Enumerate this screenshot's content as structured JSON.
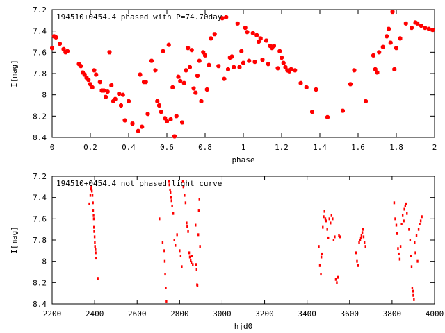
{
  "chart_data": [
    {
      "type": "scatter",
      "title": "194510+0454.4 phased with P=74.70day",
      "xlabel": "phase",
      "ylabel": "I[mag]",
      "xlim": [
        0,
        2
      ],
      "ylim": [
        8.4,
        7.2
      ],
      "y_inverted": true,
      "xticks": [
        "0",
        "0.2",
        "0.4",
        "0.6",
        "0.8",
        "1",
        "1.2",
        "1.4",
        "1.6",
        "1.8",
        "2"
      ],
      "yticks": [
        "7.2",
        "7.4",
        "7.6",
        "7.8",
        "8",
        "8.2",
        "8.4"
      ],
      "grid": false,
      "color": "#ff0000",
      "marker": "filled-square",
      "points": [
        [
          0.0,
          7.56
        ],
        [
          0.01,
          7.45
        ],
        [
          0.02,
          7.46
        ],
        [
          0.04,
          7.52
        ],
        [
          0.06,
          7.57
        ],
        [
          0.07,
          7.6
        ],
        [
          0.08,
          7.59
        ],
        [
          0.14,
          7.71
        ],
        [
          0.15,
          7.73
        ],
        [
          0.16,
          7.79
        ],
        [
          0.17,
          7.81
        ],
        [
          0.18,
          7.84
        ],
        [
          0.19,
          7.86
        ],
        [
          0.2,
          7.9
        ],
        [
          0.21,
          7.93
        ],
        [
          0.22,
          7.77
        ],
        [
          0.23,
          7.81
        ],
        [
          0.25,
          7.88
        ],
        [
          0.26,
          7.96
        ],
        [
          0.27,
          7.96
        ],
        [
          0.28,
          8.02
        ],
        [
          0.29,
          7.97
        ],
        [
          0.3,
          7.6
        ],
        [
          0.31,
          7.91
        ],
        [
          0.32,
          8.06
        ],
        [
          0.33,
          8.04
        ],
        [
          0.35,
          7.99
        ],
        [
          0.36,
          8.1
        ],
        [
          0.37,
          8.0
        ],
        [
          0.38,
          8.24
        ],
        [
          0.4,
          8.06
        ],
        [
          0.42,
          8.27
        ],
        [
          0.45,
          8.34
        ],
        [
          0.46,
          7.81
        ],
        [
          0.47,
          8.3
        ],
        [
          0.48,
          7.88
        ],
        [
          0.49,
          7.88
        ],
        [
          0.5,
          8.18
        ],
        [
          0.52,
          7.68
        ],
        [
          0.54,
          7.77
        ],
        [
          0.55,
          8.06
        ],
        [
          0.56,
          8.1
        ],
        [
          0.57,
          8.16
        ],
        [
          0.58,
          7.59
        ],
        [
          0.59,
          8.22
        ],
        [
          0.6,
          8.25
        ],
        [
          0.61,
          7.53
        ],
        [
          0.62,
          8.23
        ],
        [
          0.63,
          7.93
        ],
        [
          0.64,
          8.39
        ],
        [
          0.65,
          8.2
        ],
        [
          0.66,
          7.83
        ],
        [
          0.67,
          7.87
        ],
        [
          0.68,
          8.26
        ],
        [
          0.69,
          7.89
        ],
        [
          0.7,
          7.77
        ],
        [
          0.71,
          7.56
        ],
        [
          0.72,
          7.74
        ],
        [
          0.73,
          7.58
        ],
        [
          0.74,
          7.94
        ],
        [
          0.75,
          7.98
        ],
        [
          0.76,
          7.82
        ],
        [
          0.77,
          7.68
        ],
        [
          0.78,
          8.06
        ],
        [
          0.79,
          7.6
        ],
        [
          0.8,
          7.63
        ],
        [
          0.81,
          7.95
        ],
        [
          0.82,
          7.72
        ],
        [
          0.83,
          7.47
        ],
        [
          0.85,
          7.43
        ],
        [
          0.87,
          7.73
        ],
        [
          0.89,
          7.28
        ],
        [
          0.9,
          7.85
        ],
        [
          0.91,
          7.27
        ],
        [
          0.92,
          7.76
        ],
        [
          0.93,
          7.65
        ],
        [
          0.94,
          7.64
        ],
        [
          0.95,
          7.74
        ],
        [
          0.97,
          7.33
        ],
        [
          0.98,
          7.74
        ],
        [
          0.99,
          7.59
        ],
        [
          1.0,
          7.7
        ],
        [
          1.01,
          7.37
        ],
        [
          1.02,
          7.41
        ],
        [
          1.03,
          7.68
        ],
        [
          1.05,
          7.42
        ],
        [
          1.06,
          7.69
        ],
        [
          1.07,
          7.44
        ],
        [
          1.08,
          7.5
        ],
        [
          1.09,
          7.47
        ],
        [
          1.1,
          7.67
        ],
        [
          1.12,
          7.49
        ],
        [
          1.13,
          7.71
        ],
        [
          1.14,
          7.54
        ],
        [
          1.15,
          7.56
        ],
        [
          1.16,
          7.54
        ],
        [
          1.18,
          7.75
        ],
        [
          1.19,
          7.59
        ],
        [
          1.2,
          7.65
        ],
        [
          1.21,
          7.7
        ],
        [
          1.22,
          7.74
        ],
        [
          1.23,
          7.77
        ],
        [
          1.24,
          7.78
        ],
        [
          1.25,
          7.76
        ],
        [
          1.27,
          7.77
        ],
        [
          1.3,
          7.89
        ],
        [
          1.33,
          7.93
        ],
        [
          1.36,
          8.16
        ],
        [
          1.38,
          7.95
        ],
        [
          1.44,
          8.21
        ],
        [
          1.52,
          8.15
        ],
        [
          1.56,
          7.9
        ],
        [
          1.58,
          7.77
        ],
        [
          1.64,
          8.06
        ],
        [
          1.68,
          7.63
        ],
        [
          1.69,
          7.76
        ],
        [
          1.7,
          7.79
        ],
        [
          1.71,
          7.6
        ],
        [
          1.73,
          7.55
        ],
        [
          1.75,
          7.45
        ],
        [
          1.76,
          7.38
        ],
        [
          1.77,
          7.51
        ],
        [
          1.78,
          7.22
        ],
        [
          1.79,
          7.76
        ],
        [
          1.8,
          7.56
        ],
        [
          1.82,
          7.47
        ],
        [
          1.85,
          7.33
        ],
        [
          1.88,
          7.37
        ],
        [
          1.9,
          7.32
        ],
        [
          1.91,
          7.33
        ],
        [
          1.93,
          7.35
        ],
        [
          1.95,
          7.37
        ],
        [
          1.97,
          7.38
        ],
        [
          1.99,
          7.39
        ]
      ]
    },
    {
      "type": "scatter",
      "title": "194510+0454.4 not phased light curve",
      "xlabel": "hjd0",
      "ylabel": "I[mag]",
      "xlim": [
        2200,
        4000
      ],
      "ylim": [
        8.4,
        7.2
      ],
      "y_inverted": true,
      "xticks": [
        "2200",
        "2400",
        "2600",
        "2800",
        "3000",
        "3200",
        "3400",
        "3600",
        "3800",
        "4000"
      ],
      "yticks": [
        "7.2",
        "7.4",
        "7.6",
        "7.8",
        "8",
        "8.2",
        "8.4"
      ],
      "grid": false,
      "color": "#ff0000",
      "marker": "small-dot",
      "points": [
        [
          2375,
          7.46
        ],
        [
          2380,
          7.38
        ],
        [
          2383,
          7.32
        ],
        [
          2385,
          7.3
        ],
        [
          2387,
          7.34
        ],
        [
          2390,
          7.38
        ],
        [
          2392,
          7.45
        ],
        [
          2393,
          7.52
        ],
        [
          2395,
          7.57
        ],
        [
          2396,
          7.6
        ],
        [
          2397,
          7.68
        ],
        [
          2398,
          7.72
        ],
        [
          2400,
          7.77
        ],
        [
          2401,
          7.82
        ],
        [
          2402,
          7.86
        ],
        [
          2404,
          7.89
        ],
        [
          2405,
          7.92
        ],
        [
          2407,
          7.97
        ],
        [
          2415,
          8.16
        ],
        [
          2705,
          7.6
        ],
        [
          2720,
          7.82
        ],
        [
          2728,
          7.9
        ],
        [
          2730,
          8.0
        ],
        [
          2732,
          8.12
        ],
        [
          2735,
          8.25
        ],
        [
          2738,
          8.38
        ],
        [
          2750,
          7.25
        ],
        [
          2752,
          7.28
        ],
        [
          2755,
          7.33
        ],
        [
          2757,
          7.35
        ],
        [
          2760,
          7.4
        ],
        [
          2762,
          7.43
        ],
        [
          2765,
          7.48
        ],
        [
          2770,
          7.55
        ],
        [
          2775,
          7.8
        ],
        [
          2780,
          7.85
        ],
        [
          2788,
          7.75
        ],
        [
          2800,
          7.9
        ],
        [
          2805,
          7.95
        ],
        [
          2810,
          8.05
        ],
        [
          2815,
          7.25
        ],
        [
          2818,
          7.3
        ],
        [
          2823,
          7.38
        ],
        [
          2828,
          7.45
        ],
        [
          2833,
          7.64
        ],
        [
          2836,
          7.67
        ],
        [
          2840,
          7.72
        ],
        [
          2845,
          7.92
        ],
        [
          2848,
          7.96
        ],
        [
          2852,
          7.99
        ],
        [
          2855,
          8.01
        ],
        [
          2858,
          7.95
        ],
        [
          2862,
          8.03
        ],
        [
          2875,
          7.66
        ],
        [
          2878,
          8.03
        ],
        [
          2880,
          8.08
        ],
        [
          2882,
          8.22
        ],
        [
          2884,
          8.23
        ],
        [
          2888,
          7.75
        ],
        [
          2890,
          7.52
        ],
        [
          2893,
          7.42
        ],
        [
          2896,
          7.86
        ],
        [
          3455,
          7.86
        ],
        [
          3460,
          8.04
        ],
        [
          3465,
          8.12
        ],
        [
          3467,
          7.96
        ],
        [
          3470,
          7.93
        ],
        [
          3474,
          7.68
        ],
        [
          3478,
          7.58
        ],
        [
          3482,
          7.53
        ],
        [
          3486,
          7.6
        ],
        [
          3490,
          7.62
        ],
        [
          3495,
          7.7
        ],
        [
          3500,
          7.78
        ],
        [
          3505,
          7.6
        ],
        [
          3510,
          7.64
        ],
        [
          3515,
          7.57
        ],
        [
          3520,
          7.6
        ],
        [
          3525,
          7.8
        ],
        [
          3530,
          7.77
        ],
        [
          3535,
          8.17
        ],
        [
          3540,
          8.2
        ],
        [
          3545,
          8.15
        ],
        [
          3550,
          7.76
        ],
        [
          3555,
          7.77
        ],
        [
          3630,
          7.92
        ],
        [
          3635,
          8.0
        ],
        [
          3640,
          8.04
        ],
        [
          3645,
          7.82
        ],
        [
          3650,
          7.8
        ],
        [
          3653,
          7.78
        ],
        [
          3656,
          7.76
        ],
        [
          3660,
          7.73
        ],
        [
          3663,
          7.7
        ],
        [
          3666,
          7.77
        ],
        [
          3670,
          7.82
        ],
        [
          3675,
          7.86
        ],
        [
          3810,
          7.45
        ],
        [
          3815,
          7.6
        ],
        [
          3820,
          7.66
        ],
        [
          3824,
          7.74
        ],
        [
          3828,
          7.88
        ],
        [
          3832,
          7.93
        ],
        [
          3836,
          7.98
        ],
        [
          3840,
          7.86
        ],
        [
          3845,
          7.65
        ],
        [
          3850,
          7.57
        ],
        [
          3855,
          7.62
        ],
        [
          3858,
          7.51
        ],
        [
          3862,
          7.48
        ],
        [
          3866,
          7.46
        ],
        [
          3870,
          7.55
        ],
        [
          3880,
          7.7
        ],
        [
          3885,
          7.8
        ],
        [
          3888,
          7.95
        ],
        [
          3892,
          8.05
        ],
        [
          3895,
          8.25
        ],
        [
          3898,
          8.28
        ],
        [
          3900,
          8.32
        ],
        [
          3903,
          8.36
        ],
        [
          3906,
          7.82
        ],
        [
          3910,
          7.92
        ],
        [
          3915,
          7.76
        ],
        [
          3920,
          8.0
        ],
        [
          3925,
          7.7
        ],
        [
          3930,
          7.65
        ],
        [
          3935,
          7.62
        ],
        [
          3940,
          7.58
        ]
      ]
    }
  ]
}
